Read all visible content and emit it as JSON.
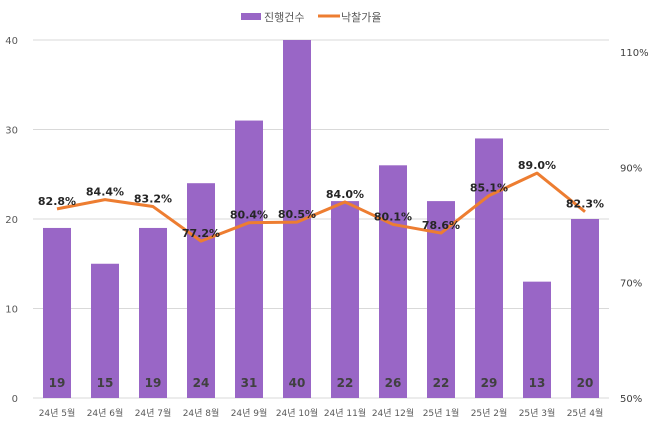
{
  "chart_data": {
    "type": "bar",
    "categories": [
      "24년 5월",
      "24년 6월",
      "24년 7월",
      "24년 8월",
      "24년 9월",
      "24년 10월",
      "24년 11월",
      "24년 12월",
      "25년 1월",
      "25년 2월",
      "25년 3월",
      "25년 4월"
    ],
    "series": [
      {
        "name": "진행건수",
        "type": "bar",
        "axis": "left",
        "color": "#9966c6",
        "values": [
          19,
          15,
          19,
          24,
          31,
          40,
          22,
          26,
          22,
          29,
          13,
          20
        ],
        "labels": [
          "19",
          "15",
          "19",
          "24",
          "31",
          "40",
          "22",
          "26",
          "22",
          "29",
          "13",
          "20"
        ]
      },
      {
        "name": "낙찰가율",
        "type": "line",
        "axis": "right",
        "color": "#ed7d31",
        "values": [
          82.8,
          84.4,
          83.2,
          77.2,
          80.4,
          80.5,
          84.0,
          80.1,
          78.6,
          85.1,
          89.0,
          82.3
        ],
        "labels": [
          "82.8%",
          "84.4%",
          "83.2%",
          "77.2%",
          "80.4%",
          "80.5%",
          "84.0%",
          "80.1%",
          "78.6%",
          "85.1%",
          "89.0%",
          "82.3%"
        ]
      }
    ],
    "y_left": {
      "range": [
        0,
        40
      ],
      "ticks": [
        "0",
        "10",
        "20",
        "30",
        "40"
      ]
    },
    "y_right": {
      "range": [
        50,
        110
      ],
      "ticks": [
        "50%",
        "70%",
        "90%",
        "110%"
      ]
    },
    "grid": true,
    "legend": "top"
  }
}
